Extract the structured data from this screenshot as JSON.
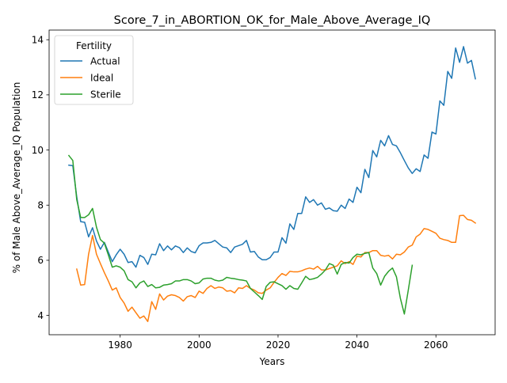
{
  "chart_data": {
    "type": "line",
    "title": "Score_7_in_ABORTION_OK_for_Male_Above_Average_IQ",
    "xlabel": "Years",
    "ylabel": "% of Male Above_Average_IQ Population",
    "xlim": [
      1962,
      2075
    ],
    "ylim": [
      3.3,
      14.35
    ],
    "xticks": [
      1980,
      2000,
      2020,
      2040,
      2060
    ],
    "yticks": [
      4,
      6,
      8,
      10,
      12,
      14
    ],
    "grid": false,
    "legend": {
      "title": "Fertility",
      "position": "top-left"
    },
    "series": [
      {
        "name": "Actual",
        "color": "#1f77b4",
        "points": [
          [
            1967,
            9.45
          ],
          [
            1968,
            9.43
          ],
          [
            1969,
            8.3
          ],
          [
            1970,
            7.4
          ],
          [
            1971,
            7.38
          ],
          [
            1972,
            6.85
          ],
          [
            1973,
            7.18
          ],
          [
            1974,
            6.7
          ],
          [
            1975,
            6.4
          ],
          [
            1976,
            6.65
          ],
          [
            1977,
            6.3
          ],
          [
            1978,
            5.95
          ],
          [
            1979,
            6.2
          ],
          [
            1980,
            6.4
          ],
          [
            1981,
            6.22
          ],
          [
            1982,
            5.92
          ],
          [
            1983,
            5.95
          ],
          [
            1984,
            5.75
          ],
          [
            1985,
            6.18
          ],
          [
            1986,
            6.1
          ],
          [
            1987,
            5.85
          ],
          [
            1988,
            6.22
          ],
          [
            1989,
            6.2
          ],
          [
            1990,
            6.6
          ],
          [
            1991,
            6.35
          ],
          [
            1992,
            6.52
          ],
          [
            1993,
            6.38
          ],
          [
            1994,
            6.52
          ],
          [
            1995,
            6.46
          ],
          [
            1996,
            6.28
          ],
          [
            1997,
            6.45
          ],
          [
            1998,
            6.32
          ],
          [
            1999,
            6.27
          ],
          [
            2000,
            6.53
          ],
          [
            2001,
            6.63
          ],
          [
            2002,
            6.63
          ],
          [
            2003,
            6.65
          ],
          [
            2004,
            6.72
          ],
          [
            2005,
            6.6
          ],
          [
            2006,
            6.48
          ],
          [
            2007,
            6.45
          ],
          [
            2008,
            6.28
          ],
          [
            2009,
            6.48
          ],
          [
            2010,
            6.53
          ],
          [
            2011,
            6.58
          ],
          [
            2012,
            6.72
          ],
          [
            2013,
            6.3
          ],
          [
            2014,
            6.32
          ],
          [
            2015,
            6.12
          ],
          [
            2016,
            6.02
          ],
          [
            2017,
            6.02
          ],
          [
            2018,
            6.1
          ],
          [
            2019,
            6.3
          ],
          [
            2020,
            6.3
          ],
          [
            2021,
            6.82
          ],
          [
            2022,
            6.62
          ],
          [
            2023,
            7.32
          ],
          [
            2024,
            7.12
          ],
          [
            2025,
            7.7
          ],
          [
            2026,
            7.7
          ],
          [
            2027,
            8.3
          ],
          [
            2028,
            8.1
          ],
          [
            2029,
            8.2
          ],
          [
            2030,
            8.0
          ],
          [
            2031,
            8.08
          ],
          [
            2032,
            7.85
          ],
          [
            2033,
            7.9
          ],
          [
            2034,
            7.8
          ],
          [
            2035,
            7.78
          ],
          [
            2036,
            8.0
          ],
          [
            2037,
            7.88
          ],
          [
            2038,
            8.22
          ],
          [
            2039,
            8.1
          ],
          [
            2040,
            8.65
          ],
          [
            2041,
            8.45
          ],
          [
            2042,
            9.3
          ],
          [
            2043,
            9.0
          ],
          [
            2044,
            9.98
          ],
          [
            2045,
            9.75
          ],
          [
            2046,
            10.35
          ],
          [
            2047,
            10.15
          ],
          [
            2048,
            10.52
          ],
          [
            2049,
            10.2
          ],
          [
            2050,
            10.15
          ],
          [
            2051,
            9.9
          ],
          [
            2052,
            9.62
          ],
          [
            2053,
            9.35
          ],
          [
            2054,
            9.15
          ],
          [
            2055,
            9.32
          ],
          [
            2056,
            9.22
          ],
          [
            2057,
            9.82
          ],
          [
            2058,
            9.7
          ],
          [
            2059,
            10.65
          ],
          [
            2060,
            10.58
          ],
          [
            2061,
            11.78
          ],
          [
            2062,
            11.62
          ],
          [
            2063,
            12.85
          ],
          [
            2064,
            12.6
          ],
          [
            2065,
            13.7
          ],
          [
            2066,
            13.18
          ],
          [
            2067,
            13.75
          ],
          [
            2068,
            13.15
          ],
          [
            2069,
            13.25
          ],
          [
            2070,
            12.58
          ]
        ]
      },
      {
        "name": "Ideal",
        "color": "#ff7f0e",
        "points": [
          [
            1969,
            5.68
          ],
          [
            1970,
            5.1
          ],
          [
            1971,
            5.12
          ],
          [
            1972,
            6.22
          ],
          [
            1973,
            6.9
          ],
          [
            1974,
            6.22
          ],
          [
            1975,
            5.88
          ],
          [
            1976,
            5.55
          ],
          [
            1977,
            5.25
          ],
          [
            1978,
            4.92
          ],
          [
            1979,
            5.0
          ],
          [
            1980,
            4.65
          ],
          [
            1981,
            4.45
          ],
          [
            1982,
            4.15
          ],
          [
            1983,
            4.3
          ],
          [
            1984,
            4.1
          ],
          [
            1985,
            3.9
          ],
          [
            1986,
            3.98
          ],
          [
            1987,
            3.78
          ],
          [
            1988,
            4.5
          ],
          [
            1989,
            4.22
          ],
          [
            1990,
            4.78
          ],
          [
            1991,
            4.56
          ],
          [
            1992,
            4.7
          ],
          [
            1993,
            4.75
          ],
          [
            1994,
            4.72
          ],
          [
            1995,
            4.65
          ],
          [
            1996,
            4.52
          ],
          [
            1997,
            4.68
          ],
          [
            1998,
            4.72
          ],
          [
            1999,
            4.65
          ],
          [
            2000,
            4.88
          ],
          [
            2001,
            4.8
          ],
          [
            2002,
            4.98
          ],
          [
            2003,
            5.08
          ],
          [
            2004,
            4.98
          ],
          [
            2005,
            5.03
          ],
          [
            2006,
            5.0
          ],
          [
            2007,
            4.88
          ],
          [
            2008,
            4.9
          ],
          [
            2009,
            4.82
          ],
          [
            2010,
            5.0
          ],
          [
            2011,
            4.98
          ],
          [
            2012,
            5.08
          ],
          [
            2013,
            4.98
          ],
          [
            2014,
            4.92
          ],
          [
            2015,
            4.82
          ],
          [
            2016,
            4.8
          ],
          [
            2017,
            4.92
          ],
          [
            2018,
            5.0
          ],
          [
            2019,
            5.2
          ],
          [
            2020,
            5.38
          ],
          [
            2021,
            5.52
          ],
          [
            2022,
            5.45
          ],
          [
            2023,
            5.6
          ],
          [
            2024,
            5.58
          ],
          [
            2025,
            5.58
          ],
          [
            2026,
            5.62
          ],
          [
            2027,
            5.68
          ],
          [
            2028,
            5.72
          ],
          [
            2029,
            5.68
          ],
          [
            2030,
            5.78
          ],
          [
            2031,
            5.65
          ],
          [
            2032,
            5.65
          ],
          [
            2033,
            5.7
          ],
          [
            2034,
            5.75
          ],
          [
            2035,
            5.8
          ],
          [
            2036,
            5.98
          ],
          [
            2037,
            5.88
          ],
          [
            2038,
            5.95
          ],
          [
            2039,
            5.85
          ],
          [
            2040,
            6.15
          ],
          [
            2041,
            6.12
          ],
          [
            2042,
            6.28
          ],
          [
            2043,
            6.28
          ],
          [
            2044,
            6.35
          ],
          [
            2045,
            6.35
          ],
          [
            2046,
            6.18
          ],
          [
            2047,
            6.15
          ],
          [
            2048,
            6.18
          ],
          [
            2049,
            6.05
          ],
          [
            2050,
            6.22
          ],
          [
            2051,
            6.2
          ],
          [
            2052,
            6.3
          ],
          [
            2053,
            6.48
          ],
          [
            2054,
            6.55
          ],
          [
            2055,
            6.85
          ],
          [
            2056,
            6.95
          ],
          [
            2057,
            7.15
          ],
          [
            2058,
            7.12
          ],
          [
            2059,
            7.05
          ],
          [
            2060,
            6.98
          ],
          [
            2061,
            6.8
          ],
          [
            2062,
            6.75
          ],
          [
            2063,
            6.72
          ],
          [
            2064,
            6.65
          ],
          [
            2065,
            6.65
          ],
          [
            2066,
            7.62
          ],
          [
            2067,
            7.63
          ],
          [
            2068,
            7.48
          ],
          [
            2069,
            7.45
          ],
          [
            2070,
            7.35
          ]
        ]
      },
      {
        "name": "Sterile",
        "color": "#2ca02c",
        "points": [
          [
            1967,
            9.8
          ],
          [
            1968,
            9.62
          ],
          [
            1969,
            8.2
          ],
          [
            1970,
            7.55
          ],
          [
            1971,
            7.55
          ],
          [
            1972,
            7.65
          ],
          [
            1973,
            7.88
          ],
          [
            1974,
            7.2
          ],
          [
            1975,
            6.75
          ],
          [
            1976,
            6.62
          ],
          [
            1977,
            6.2
          ],
          [
            1978,
            5.75
          ],
          [
            1979,
            5.8
          ],
          [
            1980,
            5.75
          ],
          [
            1981,
            5.62
          ],
          [
            1982,
            5.3
          ],
          [
            1983,
            5.22
          ],
          [
            1984,
            5.0
          ],
          [
            1985,
            5.18
          ],
          [
            1986,
            5.25
          ],
          [
            1987,
            5.05
          ],
          [
            1988,
            5.12
          ],
          [
            1989,
            5.0
          ],
          [
            1990,
            5.02
          ],
          [
            1991,
            5.1
          ],
          [
            1992,
            5.12
          ],
          [
            1993,
            5.15
          ],
          [
            1994,
            5.25
          ],
          [
            1995,
            5.25
          ],
          [
            1996,
            5.3
          ],
          [
            1997,
            5.3
          ],
          [
            1998,
            5.25
          ],
          [
            1999,
            5.15
          ],
          [
            2000,
            5.18
          ],
          [
            2001,
            5.32
          ],
          [
            2002,
            5.35
          ],
          [
            2003,
            5.35
          ],
          [
            2004,
            5.28
          ],
          [
            2005,
            5.25
          ],
          [
            2006,
            5.28
          ],
          [
            2007,
            5.38
          ],
          [
            2008,
            5.35
          ],
          [
            2009,
            5.33
          ],
          [
            2010,
            5.3
          ],
          [
            2011,
            5.28
          ],
          [
            2012,
            5.25
          ],
          [
            2013,
            4.98
          ],
          [
            2014,
            4.85
          ],
          [
            2015,
            4.72
          ],
          [
            2016,
            4.58
          ],
          [
            2017,
            5.05
          ],
          [
            2018,
            5.2
          ],
          [
            2019,
            5.22
          ],
          [
            2020,
            5.15
          ],
          [
            2021,
            5.08
          ],
          [
            2022,
            4.95
          ],
          [
            2023,
            5.08
          ],
          [
            2024,
            4.98
          ],
          [
            2025,
            4.95
          ],
          [
            2026,
            5.18
          ],
          [
            2027,
            5.42
          ],
          [
            2028,
            5.3
          ],
          [
            2029,
            5.33
          ],
          [
            2030,
            5.38
          ],
          [
            2031,
            5.5
          ],
          [
            2032,
            5.65
          ],
          [
            2033,
            5.88
          ],
          [
            2034,
            5.82
          ],
          [
            2035,
            5.5
          ],
          [
            2036,
            5.85
          ],
          [
            2037,
            5.92
          ],
          [
            2038,
            5.9
          ],
          [
            2039,
            6.1
          ],
          [
            2040,
            6.22
          ],
          [
            2041,
            6.2
          ],
          [
            2042,
            6.25
          ],
          [
            2043,
            6.28
          ],
          [
            2044,
            5.72
          ],
          [
            2045,
            5.52
          ],
          [
            2046,
            5.1
          ],
          [
            2047,
            5.42
          ],
          [
            2048,
            5.6
          ],
          [
            2049,
            5.72
          ],
          [
            2050,
            5.4
          ],
          [
            2051,
            4.62
          ],
          [
            2052,
            4.05
          ],
          [
            2053,
            4.92
          ],
          [
            2054,
            5.82
          ]
        ]
      }
    ]
  }
}
